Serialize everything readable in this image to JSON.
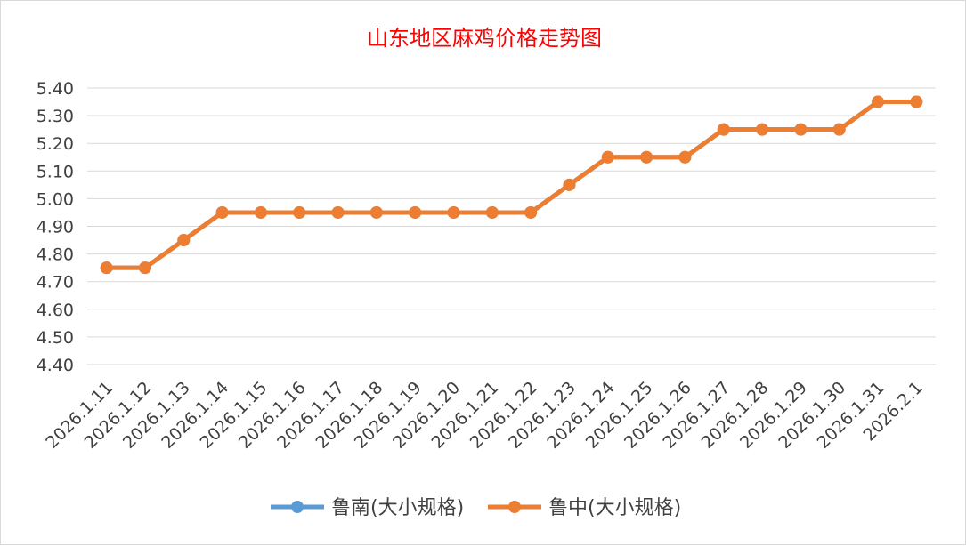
{
  "chart_data": {
    "type": "line",
    "title": "山东地区麻鸡价格走势图",
    "xlabel": "",
    "ylabel": "",
    "categories": [
      "2026.1.11",
      "2026.1.12",
      "2026.1.13",
      "2026.1.14",
      "2026.1.15",
      "2026.1.16",
      "2026.1.17",
      "2026.1.18",
      "2026.1.19",
      "2026.1.20",
      "2026.1.21",
      "2026.1.22",
      "2026.1.23",
      "2026.1.24",
      "2026.1.25",
      "2026.1.26",
      "2026.1.27",
      "2026.1.28",
      "2026.1.29",
      "2026.1.30",
      "2026.1.31",
      "2026.2.1"
    ],
    "y_ticks": [
      "4.40",
      "4.50",
      "4.60",
      "4.70",
      "4.80",
      "4.90",
      "5.00",
      "5.10",
      "5.20",
      "5.30",
      "5.40"
    ],
    "ylim": [
      4.4,
      5.4
    ],
    "grid": true,
    "legend_position": "bottom",
    "series": [
      {
        "name": "鲁南(大小规格)",
        "color": "#5b9bd5",
        "values": [
          4.75,
          4.75,
          4.85,
          4.95,
          4.95,
          4.95,
          4.95,
          4.95,
          4.95,
          4.95,
          4.95,
          4.95,
          5.05,
          5.15,
          5.15,
          5.15,
          5.25,
          5.25,
          5.25,
          5.25,
          5.35,
          5.35
        ]
      },
      {
        "name": "鲁中(大小规格)",
        "color": "#ed7d31",
        "values": [
          4.75,
          4.75,
          4.85,
          4.95,
          4.95,
          4.95,
          4.95,
          4.95,
          4.95,
          4.95,
          4.95,
          4.95,
          5.05,
          5.15,
          5.15,
          5.15,
          5.25,
          5.25,
          5.25,
          5.25,
          5.35,
          5.35
        ]
      }
    ]
  }
}
